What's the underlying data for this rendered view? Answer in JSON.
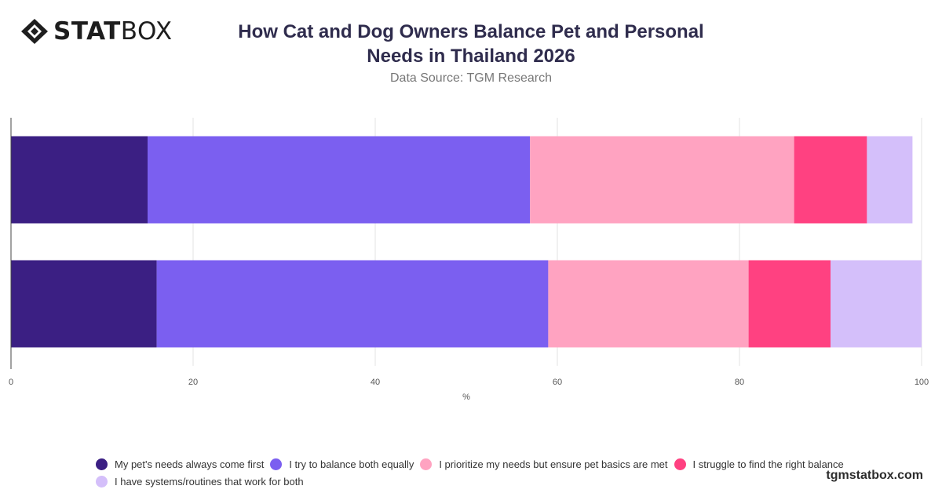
{
  "brand": {
    "logo_bold": "STAT",
    "logo_light": "BOX"
  },
  "header": {
    "title_line1": "How Cat and Dog Owners Balance Pet and Personal",
    "title_line2": "Needs in Thailand 2026",
    "subtitle": "Data Source: TGM Research"
  },
  "chart_data": {
    "type": "bar",
    "orientation": "horizontal",
    "stacked": true,
    "categories": [
      "",
      ""
    ],
    "xlabel": "%",
    "ylabel": "",
    "xlim": [
      0,
      100
    ],
    "xticks": [
      0,
      20,
      40,
      60,
      80,
      100
    ],
    "grid": true,
    "legend_position": "bottom",
    "series": [
      {
        "name": "My pet's needs always come first",
        "color": "#3b1f83",
        "values": [
          15,
          16
        ]
      },
      {
        "name": "I try to balance both equally",
        "color": "#7b5ff0",
        "values": [
          42,
          43
        ]
      },
      {
        "name": "I prioritize my needs but ensure pet basics are met",
        "color": "#ffa3c1",
        "values": [
          29,
          22
        ]
      },
      {
        "name": "I struggle to find the right balance",
        "color": "#ff4181",
        "values": [
          8,
          9
        ]
      },
      {
        "name": "I have systems/routines that work for both",
        "color": "#d4bffa",
        "values": [
          5,
          10
        ]
      }
    ]
  },
  "footer": {
    "site": "tgmstatbox.com"
  }
}
